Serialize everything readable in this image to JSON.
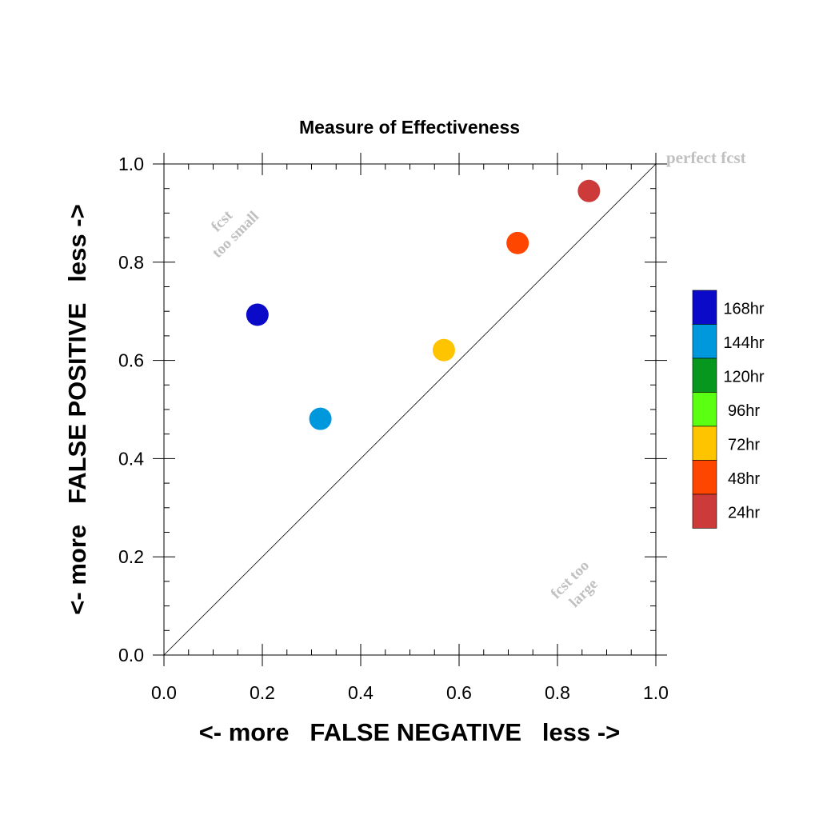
{
  "chart_data": {
    "type": "scatter",
    "title": "Measure of Effectiveness",
    "xlabel": "<- more   FALSE NEGATIVE   less ->",
    "ylabel": "<- more   FALSE POSITIVE   less ->",
    "xlim": [
      0.0,
      1.0
    ],
    "ylim": [
      0.0,
      1.0
    ],
    "xticks": [
      "0.0",
      "0.2",
      "0.4",
      "0.6",
      "0.8",
      "1.0"
    ],
    "yticks": [
      "0.0",
      "0.2",
      "0.4",
      "0.6",
      "0.8",
      "1.0"
    ],
    "grid": false,
    "reference_line": {
      "from": [
        0,
        0
      ],
      "to": [
        1,
        1
      ]
    },
    "annotations": {
      "perfect": "perfect fcst",
      "too_small_1": "fcst",
      "too_small_2": "too small",
      "too_large_1": "fcst too",
      "too_large_2": "large"
    },
    "legend": {
      "placement": "right",
      "entries": [
        {
          "label": "168hr",
          "color": "#0a0ac8"
        },
        {
          "label": "144hr",
          "color": "#0098dc"
        },
        {
          "label": "120hr",
          "color": "#07961e"
        },
        {
          "label": "96hr",
          "color": "#5aff12"
        },
        {
          "label": "72hr",
          "color": "#ffc400"
        },
        {
          "label": "48hr",
          "color": "#ff4600"
        },
        {
          "label": "24hr",
          "color": "#cd3a3a"
        }
      ]
    },
    "points": [
      {
        "series": "168hr",
        "x": 0.19,
        "y": 0.693,
        "color": "#0a0ac8"
      },
      {
        "series": "144hr",
        "x": 0.318,
        "y": 0.481,
        "color": "#0098dc"
      },
      {
        "series": "72hr",
        "x": 0.569,
        "y": 0.621,
        "color": "#ffc400"
      },
      {
        "series": "48hr",
        "x": 0.719,
        "y": 0.839,
        "color": "#ff4600"
      },
      {
        "series": "24hr",
        "x": 0.864,
        "y": 0.945,
        "color": "#cd3a3a"
      }
    ]
  }
}
